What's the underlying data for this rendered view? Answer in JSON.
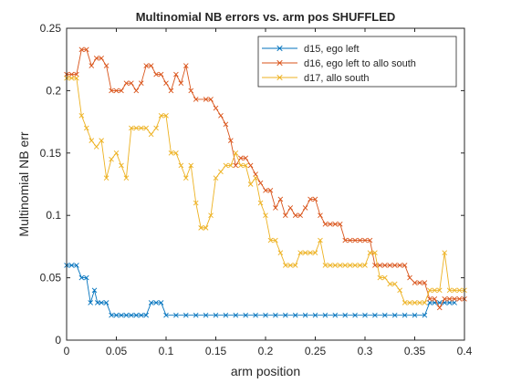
{
  "chart_data": {
    "type": "line",
    "title": "Multinomial NB errors vs. arm pos SHUFFLED",
    "xlabel": "arm position",
    "ylabel": "Multinomial NB err",
    "xlim": [
      0,
      0.4
    ],
    "ylim": [
      0,
      0.25
    ],
    "xticks": [
      "0",
      "0.05",
      "0.1",
      "0.15",
      "0.2",
      "0.25",
      "0.3",
      "0.35",
      "0.4"
    ],
    "yticks": [
      "0",
      "0.05",
      "0.1",
      "0.15",
      "0.2",
      "0.25"
    ],
    "grid": false,
    "legend_position": "top-right",
    "marker": "x",
    "series": [
      {
        "name": "d15, ego left",
        "color": "#0072BD",
        "points": [
          [
            0,
            0.06
          ],
          [
            0.005,
            0.06
          ],
          [
            0.01,
            0.06
          ],
          [
            0.015,
            0.05
          ],
          [
            0.02,
            0.05
          ],
          [
            0.024,
            0.03
          ],
          [
            0.028,
            0.04
          ],
          [
            0.031,
            0.03
          ],
          [
            0.035,
            0.03
          ],
          [
            0.04,
            0.03
          ],
          [
            0.045,
            0.02
          ],
          [
            0.05,
            0.02
          ],
          [
            0.055,
            0.02
          ],
          [
            0.06,
            0.02
          ],
          [
            0.065,
            0.02
          ],
          [
            0.07,
            0.02
          ],
          [
            0.075,
            0.02
          ],
          [
            0.08,
            0.02
          ],
          [
            0.085,
            0.03
          ],
          [
            0.09,
            0.03
          ],
          [
            0.095,
            0.03
          ],
          [
            0.1,
            0.02
          ],
          [
            0.11,
            0.02
          ],
          [
            0.12,
            0.02
          ],
          [
            0.13,
            0.02
          ],
          [
            0.14,
            0.02
          ],
          [
            0.15,
            0.02
          ],
          [
            0.16,
            0.02
          ],
          [
            0.17,
            0.02
          ],
          [
            0.18,
            0.02
          ],
          [
            0.19,
            0.02
          ],
          [
            0.2,
            0.02
          ],
          [
            0.21,
            0.02
          ],
          [
            0.22,
            0.02
          ],
          [
            0.23,
            0.02
          ],
          [
            0.24,
            0.02
          ],
          [
            0.25,
            0.02
          ],
          [
            0.26,
            0.02
          ],
          [
            0.27,
            0.02
          ],
          [
            0.28,
            0.02
          ],
          [
            0.29,
            0.02
          ],
          [
            0.3,
            0.02
          ],
          [
            0.31,
            0.02
          ],
          [
            0.32,
            0.02
          ],
          [
            0.33,
            0.02
          ],
          [
            0.34,
            0.02
          ],
          [
            0.35,
            0.02
          ],
          [
            0.36,
            0.02
          ],
          [
            0.365,
            0.03
          ],
          [
            0.37,
            0.03
          ],
          [
            0.375,
            0.03
          ],
          [
            0.38,
            0.03
          ],
          [
            0.385,
            0.03
          ],
          [
            0.39,
            0.03
          ]
        ]
      },
      {
        "name": "d16, ego left to allo south",
        "color": "#D95319",
        "points": [
          [
            0,
            0.213
          ],
          [
            0.005,
            0.213
          ],
          [
            0.01,
            0.213
          ],
          [
            0.015,
            0.233
          ],
          [
            0.02,
            0.233
          ],
          [
            0.025,
            0.22
          ],
          [
            0.03,
            0.226
          ],
          [
            0.035,
            0.226
          ],
          [
            0.04,
            0.22
          ],
          [
            0.045,
            0.2
          ],
          [
            0.05,
            0.2
          ],
          [
            0.055,
            0.2
          ],
          [
            0.06,
            0.206
          ],
          [
            0.065,
            0.206
          ],
          [
            0.07,
            0.2
          ],
          [
            0.075,
            0.206
          ],
          [
            0.08,
            0.22
          ],
          [
            0.085,
            0.22
          ],
          [
            0.09,
            0.213
          ],
          [
            0.095,
            0.213
          ],
          [
            0.1,
            0.206
          ],
          [
            0.105,
            0.2
          ],
          [
            0.11,
            0.213
          ],
          [
            0.115,
            0.206
          ],
          [
            0.12,
            0.22
          ],
          [
            0.125,
            0.2
          ],
          [
            0.13,
            0.193
          ],
          [
            0.14,
            0.193
          ],
          [
            0.145,
            0.193
          ],
          [
            0.15,
            0.186
          ],
          [
            0.155,
            0.18
          ],
          [
            0.16,
            0.173
          ],
          [
            0.165,
            0.16
          ],
          [
            0.17,
            0.14
          ],
          [
            0.175,
            0.146
          ],
          [
            0.18,
            0.146
          ],
          [
            0.185,
            0.14
          ],
          [
            0.19,
            0.133
          ],
          [
            0.195,
            0.126
          ],
          [
            0.2,
            0.12
          ],
          [
            0.205,
            0.12
          ],
          [
            0.21,
            0.106
          ],
          [
            0.215,
            0.113
          ],
          [
            0.22,
            0.1
          ],
          [
            0.225,
            0.106
          ],
          [
            0.23,
            0.1
          ],
          [
            0.235,
            0.1
          ],
          [
            0.24,
            0.106
          ],
          [
            0.245,
            0.113
          ],
          [
            0.25,
            0.113
          ],
          [
            0.255,
            0.1
          ],
          [
            0.26,
            0.093
          ],
          [
            0.265,
            0.093
          ],
          [
            0.27,
            0.093
          ],
          [
            0.275,
            0.093
          ],
          [
            0.28,
            0.08
          ],
          [
            0.285,
            0.08
          ],
          [
            0.29,
            0.08
          ],
          [
            0.295,
            0.08
          ],
          [
            0.3,
            0.08
          ],
          [
            0.305,
            0.08
          ],
          [
            0.31,
            0.06
          ],
          [
            0.315,
            0.06
          ],
          [
            0.32,
            0.06
          ],
          [
            0.325,
            0.06
          ],
          [
            0.33,
            0.06
          ],
          [
            0.335,
            0.06
          ],
          [
            0.34,
            0.06
          ],
          [
            0.345,
            0.05
          ],
          [
            0.35,
            0.046
          ],
          [
            0.355,
            0.046
          ],
          [
            0.36,
            0.046
          ],
          [
            0.365,
            0.033
          ],
          [
            0.37,
            0.033
          ],
          [
            0.375,
            0.026
          ],
          [
            0.38,
            0.033
          ],
          [
            0.385,
            0.033
          ],
          [
            0.39,
            0.033
          ],
          [
            0.395,
            0.033
          ],
          [
            0.4,
            0.033
          ]
        ]
      },
      {
        "name": "d17, allo south",
        "color": "#EDB120",
        "points": [
          [
            0,
            0.21
          ],
          [
            0.005,
            0.21
          ],
          [
            0.01,
            0.21
          ],
          [
            0.015,
            0.18
          ],
          [
            0.02,
            0.17
          ],
          [
            0.025,
            0.16
          ],
          [
            0.03,
            0.155
          ],
          [
            0.035,
            0.16
          ],
          [
            0.04,
            0.13
          ],
          [
            0.045,
            0.145
          ],
          [
            0.05,
            0.15
          ],
          [
            0.055,
            0.14
          ],
          [
            0.06,
            0.13
          ],
          [
            0.065,
            0.17
          ],
          [
            0.07,
            0.17
          ],
          [
            0.075,
            0.17
          ],
          [
            0.08,
            0.17
          ],
          [
            0.085,
            0.165
          ],
          [
            0.09,
            0.17
          ],
          [
            0.095,
            0.18
          ],
          [
            0.1,
            0.18
          ],
          [
            0.105,
            0.15
          ],
          [
            0.11,
            0.15
          ],
          [
            0.115,
            0.14
          ],
          [
            0.12,
            0.13
          ],
          [
            0.125,
            0.14
          ],
          [
            0.13,
            0.11
          ],
          [
            0.135,
            0.09
          ],
          [
            0.14,
            0.09
          ],
          [
            0.145,
            0.1
          ],
          [
            0.15,
            0.13
          ],
          [
            0.155,
            0.135
          ],
          [
            0.16,
            0.14
          ],
          [
            0.165,
            0.14
          ],
          [
            0.17,
            0.15
          ],
          [
            0.175,
            0.14
          ],
          [
            0.18,
            0.14
          ],
          [
            0.185,
            0.125
          ],
          [
            0.19,
            0.13
          ],
          [
            0.195,
            0.11
          ],
          [
            0.2,
            0.1
          ],
          [
            0.205,
            0.08
          ],
          [
            0.21,
            0.08
          ],
          [
            0.215,
            0.07
          ],
          [
            0.22,
            0.06
          ],
          [
            0.225,
            0.06
          ],
          [
            0.23,
            0.06
          ],
          [
            0.235,
            0.07
          ],
          [
            0.24,
            0.07
          ],
          [
            0.245,
            0.07
          ],
          [
            0.25,
            0.07
          ],
          [
            0.255,
            0.08
          ],
          [
            0.26,
            0.06
          ],
          [
            0.265,
            0.06
          ],
          [
            0.27,
            0.06
          ],
          [
            0.275,
            0.06
          ],
          [
            0.28,
            0.06
          ],
          [
            0.285,
            0.06
          ],
          [
            0.29,
            0.06
          ],
          [
            0.295,
            0.06
          ],
          [
            0.3,
            0.06
          ],
          [
            0.305,
            0.07
          ],
          [
            0.31,
            0.07
          ],
          [
            0.315,
            0.05
          ],
          [
            0.32,
            0.05
          ],
          [
            0.325,
            0.045
          ],
          [
            0.33,
            0.045
          ],
          [
            0.335,
            0.04
          ],
          [
            0.34,
            0.03
          ],
          [
            0.345,
            0.03
          ],
          [
            0.35,
            0.03
          ],
          [
            0.355,
            0.03
          ],
          [
            0.36,
            0.03
          ],
          [
            0.365,
            0.04
          ],
          [
            0.37,
            0.04
          ],
          [
            0.375,
            0.04
          ],
          [
            0.38,
            0.07
          ],
          [
            0.385,
            0.04
          ],
          [
            0.39,
            0.04
          ],
          [
            0.395,
            0.04
          ],
          [
            0.4,
            0.04
          ]
        ]
      }
    ]
  }
}
